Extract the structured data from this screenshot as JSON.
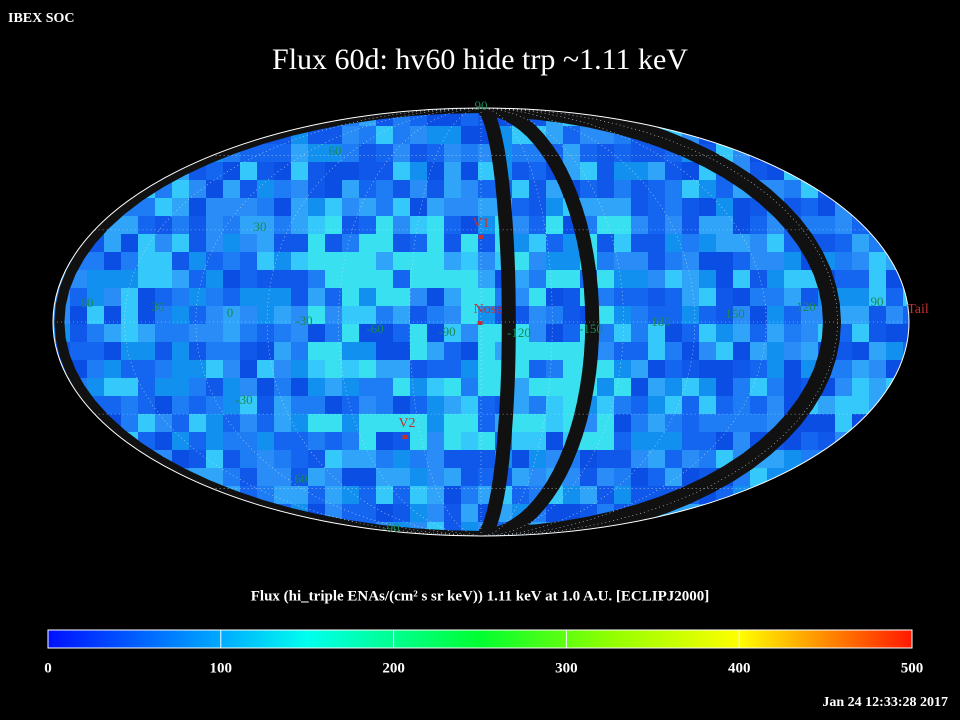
{
  "header": {
    "org": "IBEX SOC",
    "title": "Flux   60d: hv60 hide trp ~1.11 keV"
  },
  "map": {
    "grid_labels": [
      "90",
      "60",
      "30",
      "60",
      "30",
      "0",
      "-30",
      "-60",
      "-90",
      "-120",
      "-150",
      "180",
      "150",
      "120",
      "90",
      "-30",
      "60",
      "-90"
    ],
    "markers": [
      "V1",
      "Nose",
      "V2",
      "Tail"
    ]
  },
  "colorbar": {
    "caption": "Flux (hi_triple ENAs/(cm² s sr keV))  1.11 keV at 1.0 A.U. [ECLIPJ2000]",
    "range": [
      0,
      500
    ],
    "ticks": [
      0,
      100,
      200,
      300,
      400,
      500
    ]
  },
  "timestamp": "Jan 24 12:33:28 2017"
}
